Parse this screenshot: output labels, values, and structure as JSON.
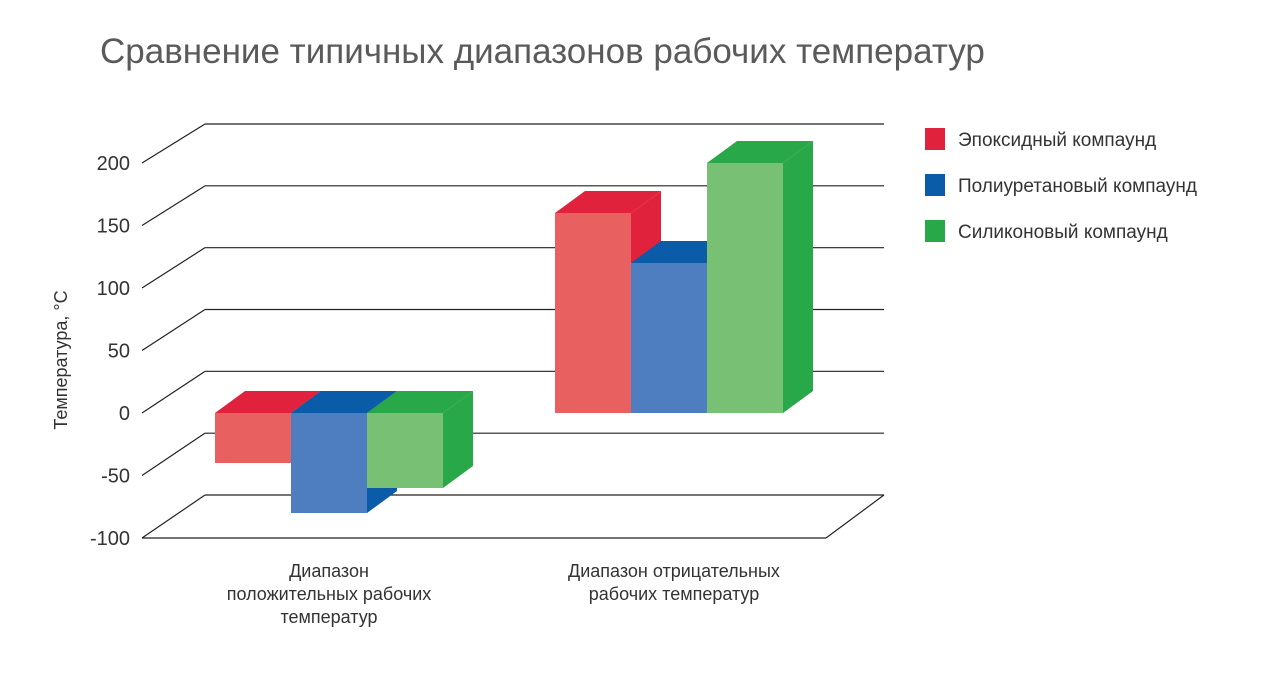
{
  "chart_data": {
    "type": "bar",
    "title": "Сравнение типичных диапазонов рабочих температур",
    "ylabel": "Температура, °C",
    "xlabel": "",
    "ylim": [
      -100,
      200
    ],
    "yticks": [
      200,
      150,
      100,
      50,
      0,
      -50,
      -100
    ],
    "ytick_labels": [
      "200",
      "150",
      "100",
      "50",
      "0",
      "-50",
      "-100"
    ],
    "grid": true,
    "three_d": true,
    "legend_position": "top-right",
    "categories": [
      [
        "Диапазон",
        "положительных рабочих",
        "температур"
      ],
      [
        "Диапазон отрицательных",
        "рабочих температур"
      ]
    ],
    "series": [
      {
        "name": "Эпоксидный компаунд",
        "values": [
          -40,
          160
        ],
        "color_front": "#e86060",
        "color_side": "#e0223c",
        "color_legend": "#e0223c"
      },
      {
        "name": "Полиуретановый компаунд",
        "values": [
          -80,
          120
        ],
        "color_front": "#4e7ec0",
        "color_side": "#0a5ca8",
        "color_legend": "#0a5ca8"
      },
      {
        "name": "Силиконовый компаунд",
        "values": [
          -60,
          200
        ],
        "color_front": "#78c074",
        "color_side": "#28a848",
        "color_legend": "#28a848"
      }
    ]
  }
}
